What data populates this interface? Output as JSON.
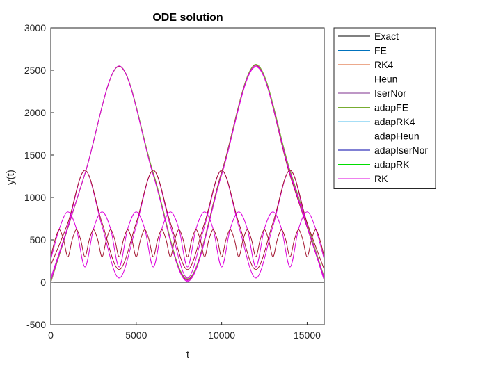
{
  "chart_data": {
    "type": "line",
    "title": "ODE solution",
    "xlabel": "t",
    "ylabel": "y(t)",
    "xlim": [
      0,
      16000
    ],
    "ylim": [
      -500,
      3000
    ],
    "xticks": [
      0,
      5000,
      10000,
      15000
    ],
    "xtick_labels": [
      "0",
      "5000",
      "10000",
      "15000"
    ],
    "yticks": [
      -500,
      0,
      500,
      1000,
      1500,
      2000,
      2500,
      3000
    ],
    "ytick_labels": [
      "-500",
      "0",
      "500",
      "1000",
      "1500",
      "2000",
      "2500",
      "3000"
    ],
    "grid": false,
    "legend_position": "outside-top-right",
    "legend": [
      {
        "name": "Exact",
        "color": "#000000"
      },
      {
        "name": "FE",
        "color": "#0072BD"
      },
      {
        "name": "RK4",
        "color": "#D95319"
      },
      {
        "name": "Heun",
        "color": "#EDB120"
      },
      {
        "name": "IserNor",
        "color": "#7E2F8E"
      },
      {
        "name": "adapFE",
        "color": "#77AC30"
      },
      {
        "name": "adapRK4",
        "color": "#4DBEEE"
      },
      {
        "name": "adapHeun",
        "color": "#A2142F"
      },
      {
        "name": "adapIserNor",
        "color": "#0000AA"
      },
      {
        "name": "adapRK",
        "color": "#00DD00"
      },
      {
        "name": "RK",
        "color": "#DD00DD"
      }
    ],
    "series": [
      {
        "name": "Exact",
        "color": "#000000",
        "x": [
          0,
          16000
        ],
        "y": [
          0,
          0
        ]
      },
      {
        "name": "FE",
        "color": "#DD00DD",
        "x": [
          0,
          2000,
          4000,
          6000,
          8000,
          10000,
          12000,
          14000,
          16000
        ],
        "y": [
          0,
          1280,
          2550,
          1280,
          10,
          1270,
          2540,
          1300,
          20
        ]
      },
      {
        "name": "RK4",
        "color": "#A2142F",
        "x": [
          0,
          2000,
          4000,
          6000,
          8000,
          10000,
          12000,
          14000,
          16000
        ],
        "y": [
          0,
          1280,
          2545,
          1270,
          30,
          1300,
          2560,
          1260,
          40
        ]
      },
      {
        "name": "Heun",
        "color": "#77AC30",
        "x": [
          0,
          2000,
          4000,
          6000,
          8000,
          10000,
          12000,
          14000,
          16000
        ],
        "y": [
          0,
          1280,
          2550,
          1290,
          40,
          1280,
          2570,
          1320,
          60
        ]
      },
      {
        "name": "IserNor",
        "color": "#DD00DD",
        "x": [
          0,
          1000,
          2000,
          3000,
          4000,
          5000,
          6000,
          7000,
          8000,
          9000,
          10000,
          11000,
          12000,
          13000,
          14000,
          15000,
          16000
        ],
        "y": [
          50,
          660,
          1320,
          660,
          50,
          660,
          1320,
          660,
          50,
          660,
          1320,
          660,
          50,
          660,
          1320,
          660,
          50
        ]
      },
      {
        "name": "adapFE",
        "color": "#A2142F",
        "x": [
          0,
          1000,
          2000,
          3000,
          4000,
          5000,
          6000,
          7000,
          8000,
          9000,
          10000,
          11000,
          12000,
          13000,
          14000,
          15000,
          16000
        ],
        "y": [
          200,
          700,
          1320,
          700,
          150,
          700,
          1320,
          700,
          150,
          700,
          1320,
          700,
          150,
          700,
          1320,
          700,
          150
        ]
      },
      {
        "name": "adapRK4",
        "color": "#DD00DD",
        "x": [
          0,
          500,
          1000,
          1500,
          2000,
          2500,
          3000,
          3500,
          4000,
          4500,
          5000,
          5500,
          6000,
          6500,
          7000,
          7500,
          8000,
          8500,
          9000,
          9500,
          10000,
          10500,
          11000,
          11500,
          12000,
          12500,
          13000,
          13500,
          14000,
          14500,
          15000,
          15500,
          16000
        ],
        "y": [
          270,
          630,
          830,
          630,
          180,
          630,
          830,
          630,
          180,
          630,
          830,
          630,
          180,
          630,
          830,
          630,
          180,
          630,
          830,
          630,
          180,
          630,
          830,
          630,
          180,
          630,
          830,
          630,
          180,
          630,
          830,
          630,
          270
        ]
      },
      {
        "name": "adapHeun",
        "color": "#A2142F",
        "x": [
          0,
          250,
          500,
          750,
          1000,
          1250,
          1500,
          1750,
          2000,
          2250,
          2500,
          2750,
          3000,
          3250,
          3500,
          3750,
          4000,
          4250,
          4500,
          4750,
          5000,
          5250,
          5500,
          5750,
          6000,
          6250,
          6500,
          6750,
          7000,
          7250,
          7500,
          7750,
          8000,
          8250,
          8500,
          8750,
          9000,
          9250,
          9500,
          9750,
          10000,
          10250,
          10500,
          10750,
          11000,
          11250,
          11500,
          11750,
          12000,
          12250,
          12500,
          12750,
          13000,
          13250,
          13500,
          13750,
          14000,
          14250,
          14500,
          14750,
          15000,
          15250,
          15500,
          15750,
          16000
        ],
        "y": [
          300,
          500,
          620,
          500,
          300,
          500,
          620,
          500,
          300,
          500,
          620,
          500,
          300,
          500,
          620,
          500,
          300,
          500,
          620,
          500,
          300,
          500,
          620,
          500,
          300,
          500,
          620,
          500,
          300,
          500,
          620,
          500,
          300,
          500,
          620,
          500,
          300,
          500,
          620,
          500,
          300,
          500,
          620,
          500,
          300,
          500,
          620,
          500,
          300,
          500,
          620,
          500,
          300,
          500,
          620,
          500,
          300,
          500,
          620,
          500,
          300,
          500,
          620,
          500,
          300
        ]
      },
      {
        "name": "RK",
        "color": "#DD00DD",
        "x": [
          0,
          2000,
          4000,
          6000,
          8000,
          10000,
          12000,
          14000,
          16000
        ],
        "y": [
          20,
          1280,
          2550,
          1260,
          20,
          1270,
          2550,
          1280,
          30
        ]
      }
    ]
  }
}
